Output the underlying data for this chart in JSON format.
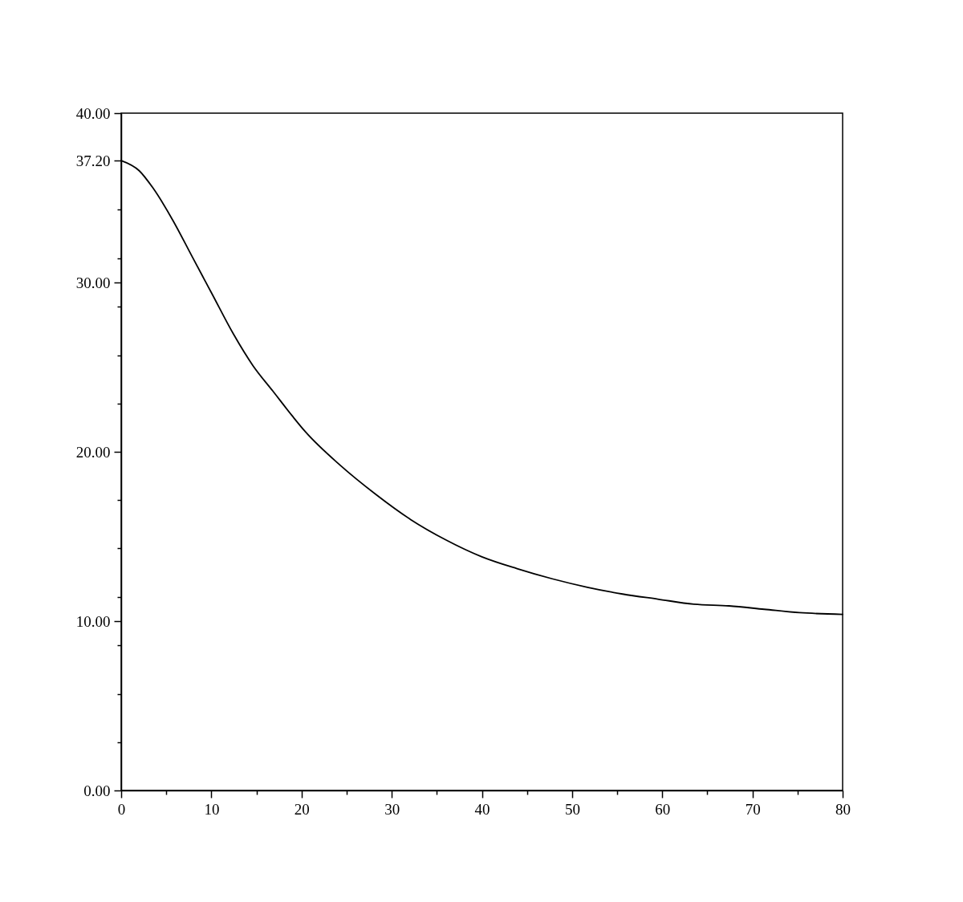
{
  "chart_data": {
    "type": "line",
    "x": [
      0,
      2,
      3.5,
      5.7,
      7.9,
      10.1,
      12.4,
      14.6,
      16.8,
      19.0,
      20.4,
      24.3,
      28.2,
      32.1,
      36.0,
      40.0,
      43.9,
      47.8,
      51.7,
      55.6,
      59.5,
      63.5,
      67.4,
      71.3,
      75.2,
      80
    ],
    "series": [
      {
        "color": "#000000",
        "values": [
          37.2,
          36.6,
          35.6,
          33.7,
          31.5,
          29.3,
          27.0,
          25.1,
          23.6,
          22.1,
          21.2,
          19.2,
          17.5,
          16.0,
          14.8,
          13.8,
          13.1,
          12.5,
          12.0,
          11.6,
          11.3,
          11.0,
          10.9,
          10.7,
          10.5,
          10.4
        ]
      }
    ],
    "xlim": [
      0,
      80
    ],
    "ylim": [
      0,
      40
    ],
    "xticks": [
      0,
      {
        "value": 5,
        "label": null
      },
      10,
      {
        "value": 15,
        "label": null
      },
      20,
      {
        "value": 25,
        "label": null
      },
      30,
      {
        "value": 35,
        "label": null
      },
      40,
      {
        "value": 45,
        "label": null
      },
      50,
      {
        "value": 55,
        "label": null
      },
      60,
      {
        "value": 65,
        "label": null
      },
      70,
      {
        "value": 75,
        "label": null
      },
      80
    ],
    "yticks": [
      {
        "value": 0,
        "label": "0.00"
      },
      {
        "value": 2.86,
        "label": null
      },
      {
        "value": 5.71,
        "label": null
      },
      {
        "value": 8.57,
        "label": null
      },
      {
        "value": 10,
        "label": "10.00"
      },
      {
        "value": 11.43,
        "label": null
      },
      {
        "value": 14.29,
        "label": null
      },
      {
        "value": 17.14,
        "label": null
      },
      {
        "value": 20,
        "label": "20.00"
      },
      {
        "value": 22.86,
        "label": null
      },
      {
        "value": 25.71,
        "label": null
      },
      {
        "value": 28.57,
        "label": null
      },
      {
        "value": 30,
        "label": "30.00"
      },
      {
        "value": 31.43,
        "label": null
      },
      {
        "value": 34.29,
        "label": null
      },
      {
        "value": 37.2,
        "label": "37.20"
      },
      {
        "value": 40,
        "label": "40.00"
      }
    ],
    "grid": false,
    "line_style": "solid"
  }
}
